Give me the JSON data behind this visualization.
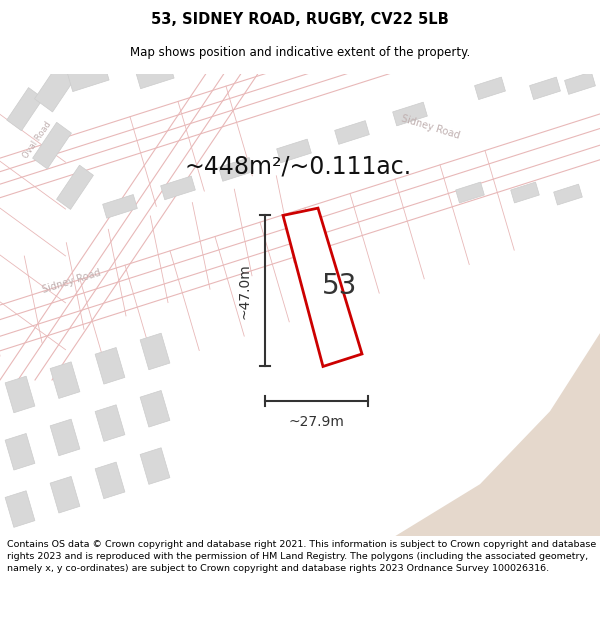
{
  "title": "53, SIDNEY ROAD, RUGBY, CV22 5LB",
  "subtitle": "Map shows position and indicative extent of the property.",
  "footer": "Contains OS data © Crown copyright and database right 2021. This information is subject to Crown copyright and database rights 2023 and is reproduced with the permission of HM Land Registry. The polygons (including the associated geometry, namely x, y co-ordinates) are subject to Crown copyright and database rights 2023 Ordnance Survey 100026316.",
  "area_label": "~448m²/~0.111ac.",
  "dim_vertical": "~47.0m",
  "dim_horizontal": "~27.9m",
  "property_number": "53",
  "map_bg": "#f0f0f0",
  "road_line_color": "#e8b8b8",
  "road_fill_color": "#f8f8f8",
  "building_fill": "#d8d8d8",
  "building_edge": "#cccccc",
  "boundary_color": "#cc0000",
  "dim_color": "#333333",
  "road_label_color": "#c0b0b0",
  "tan_color": "#e5d8cc",
  "title_fontsize": 10.5,
  "subtitle_fontsize": 8.5,
  "footer_fontsize": 6.8,
  "area_fontsize": 17,
  "dim_fontsize": 10,
  "num_fontsize": 20
}
